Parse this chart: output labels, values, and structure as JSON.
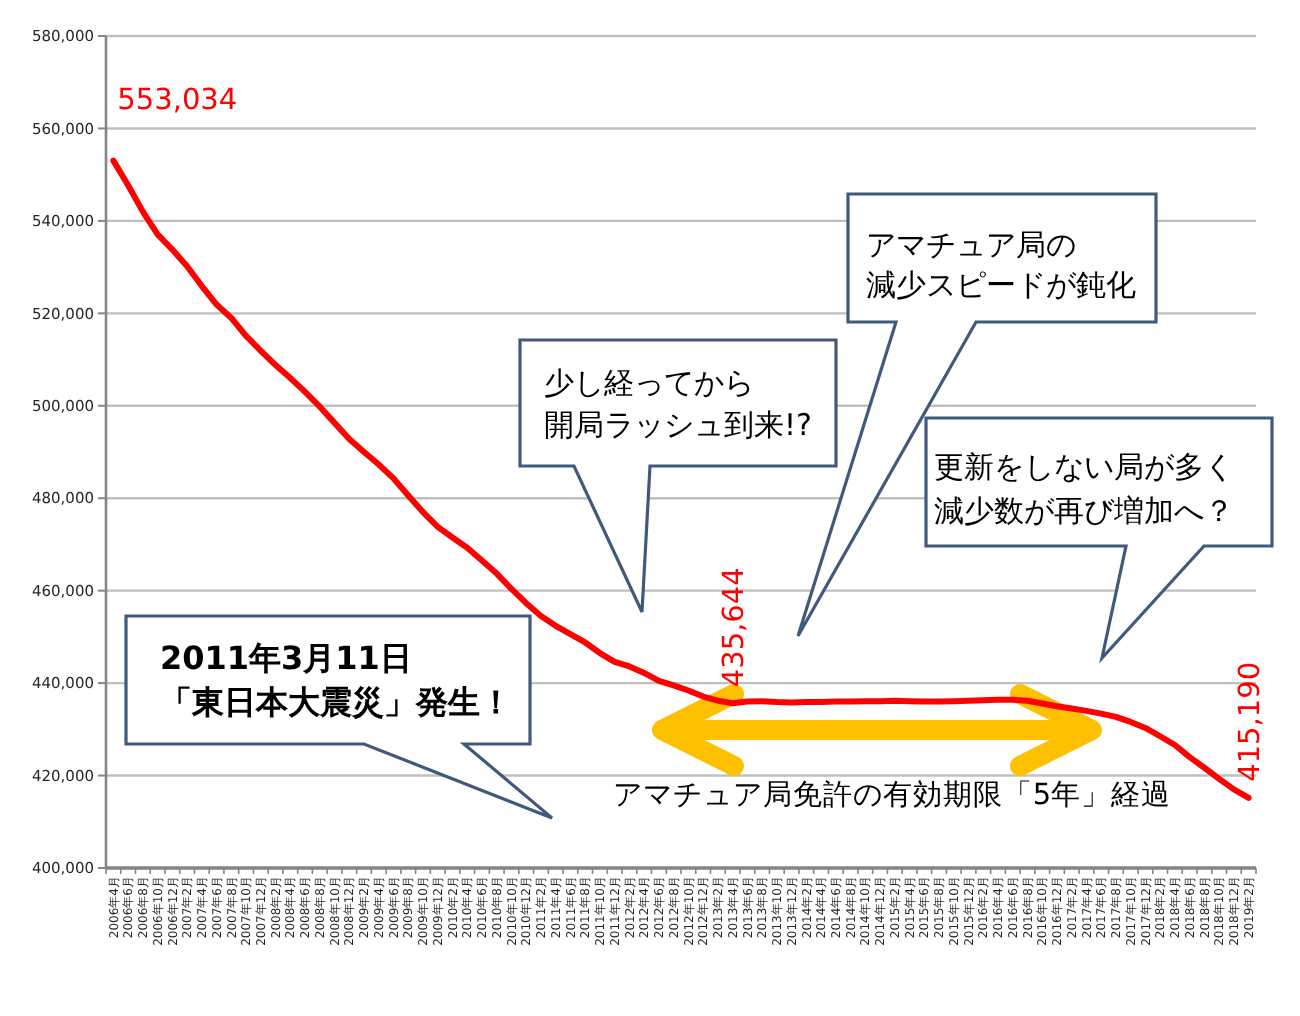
{
  "chart_data": {
    "type": "line",
    "categories": [
      "2006年4月",
      "2006年6月",
      "2006年8月",
      "2006年10月",
      "2006年12月",
      "2007年2月",
      "2007年4月",
      "2007年6月",
      "2007年8月",
      "2007年10月",
      "2007年12月",
      "2008年2月",
      "2008年4月",
      "2008年6月",
      "2008年8月",
      "2008年10月",
      "2008年12月",
      "2009年2月",
      "2009年4月",
      "2009年6月",
      "2009年8月",
      "2009年10月",
      "2009年12月",
      "2010年2月",
      "2010年4月",
      "2010年6月",
      "2010年8月",
      "2010年10月",
      "2010年12月",
      "2011年2月",
      "2011年4月",
      "2011年6月",
      "2011年8月",
      "2011年10月",
      "2011年12月",
      "2012年2月",
      "2012年4月",
      "2012年6月",
      "2012年8月",
      "2012年10月",
      "2012年12月",
      "2013年2月",
      "2013年4月",
      "2013年6月",
      "2013年8月",
      "2013年10月",
      "2013年12月",
      "2014年2月",
      "2014年4月",
      "2014年6月",
      "2014年8月",
      "2014年10月",
      "2014年12月",
      "2015年2月",
      "2015年4月",
      "2015年6月",
      "2015年8月",
      "2015年10月",
      "2015年12月",
      "2016年2月",
      "2016年4月",
      "2016年6月",
      "2016年8月",
      "2016年10月",
      "2016年12月",
      "2017年2月",
      "2017年4月",
      "2017年6月",
      "2017年8月",
      "2017年10月",
      "2017年12月",
      "2018年2月",
      "2018年4月",
      "2018年6月",
      "2018年8月",
      "2018年10月",
      "2018年12月",
      "2019年2月"
    ],
    "series": [
      {
        "color": "#ff0000",
        "values": [
          553034,
          547700,
          542000,
          537100,
          533800,
          530200,
          525900,
          521900,
          519000,
          515100,
          511900,
          508800,
          506000,
          503000,
          499800,
          496300,
          492800,
          490000,
          487300,
          484300,
          480600,
          477000,
          473800,
          471500,
          469300,
          466500,
          463700,
          460400,
          457300,
          454500,
          452400,
          450600,
          448800,
          446500,
          444600,
          443600,
          442200,
          440500,
          439500,
          438400,
          437100,
          436200,
          435644,
          436000,
          436100,
          435900,
          435800,
          435900,
          435900,
          436000,
          436000,
          436100,
          436100,
          436200,
          436100,
          436000,
          436000,
          436100,
          436200,
          436300,
          436400,
          436400,
          436200,
          435600,
          435000,
          434500,
          434000,
          433400,
          432700,
          431600,
          430300,
          428500,
          426600,
          424000,
          421700,
          419300,
          417000,
          415190
        ],
        "value_labels": [
          "553,034",
          null,
          null,
          null,
          null,
          null,
          null,
          null,
          null,
          null,
          null,
          null,
          null,
          null,
          null,
          null,
          null,
          null,
          null,
          null,
          null,
          null,
          null,
          null,
          null,
          null,
          null,
          null,
          null,
          null,
          null,
          null,
          null,
          null,
          null,
          null,
          null,
          null,
          null,
          null,
          null,
          null,
          "435,644",
          null,
          null,
          null,
          null,
          null,
          null,
          null,
          null,
          null,
          null,
          null,
          null,
          null,
          null,
          null,
          null,
          null,
          null,
          null,
          null,
          null,
          null,
          null,
          null,
          null,
          null,
          null,
          null,
          null,
          null,
          null,
          null,
          null,
          null,
          "415,190"
        ]
      }
    ],
    "ylim": [
      400000,
      580000
    ],
    "yticks": [
      {
        "value": 400000,
        "label": "400,000"
      },
      {
        "value": 420000,
        "label": "420,000"
      },
      {
        "value": 440000,
        "label": "440,000"
      },
      {
        "value": 460000,
        "label": "460,000"
      },
      {
        "value": 480000,
        "label": "480,000"
      },
      {
        "value": 500000,
        "label": "500,000"
      },
      {
        "value": 520000,
        "label": "520,000"
      },
      {
        "value": 540000,
        "label": "540,000"
      },
      {
        "value": 560000,
        "label": "560,000"
      },
      {
        "value": 580000,
        "label": "580,000"
      }
    ],
    "grid": "y",
    "line_style": "solid",
    "annotations": [
      "アマチュア局の減少スピードが鈍化",
      "少し経ってから開局ラッシュ到来!?",
      "更新をしない局が多く減少数が再び増加へ？",
      "2011年3月11日「東日本大震災」発生！",
      "アマチュア局免許の有効期限「5年」経過"
    ]
  }
}
